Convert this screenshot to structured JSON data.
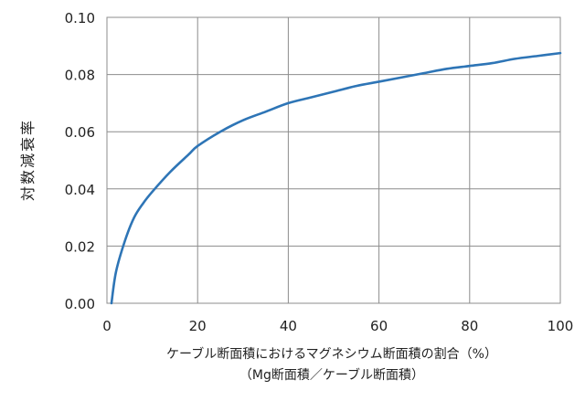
{
  "chart_data": {
    "type": "line",
    "title": "",
    "xlabel": "ケーブル断面積におけるマグネシウム断面積の割合（%）",
    "xlabel_line2": "（Mg断面積／ケーブル断面積）",
    "ylabel": "対数減衰率",
    "xlim": [
      0,
      100
    ],
    "ylim": [
      0,
      0.1
    ],
    "x_ticks": [
      "0",
      "20",
      "40",
      "60",
      "80",
      "100"
    ],
    "y_ticks": [
      "0.00",
      "0.02",
      "0.04",
      "0.06",
      "0.08",
      "0.10"
    ],
    "grid": true,
    "legend": "none",
    "series": [
      {
        "color": "#2e75b6",
        "points": [
          [
            1,
            0.0
          ],
          [
            2,
            0.011
          ],
          [
            4,
            0.022
          ],
          [
            6,
            0.03
          ],
          [
            8,
            0.035
          ],
          [
            10,
            0.039
          ],
          [
            14,
            0.046
          ],
          [
            18,
            0.052
          ],
          [
            20,
            0.055
          ],
          [
            25,
            0.06
          ],
          [
            30,
            0.064
          ],
          [
            35,
            0.067
          ],
          [
            40,
            0.07
          ],
          [
            45,
            0.072
          ],
          [
            50,
            0.074
          ],
          [
            55,
            0.076
          ],
          [
            60,
            0.0775
          ],
          [
            65,
            0.079
          ],
          [
            70,
            0.0805
          ],
          [
            75,
            0.082
          ],
          [
            80,
            0.083
          ],
          [
            85,
            0.084
          ],
          [
            90,
            0.0855
          ],
          [
            95,
            0.0865
          ],
          [
            100,
            0.0875
          ]
        ]
      }
    ]
  }
}
